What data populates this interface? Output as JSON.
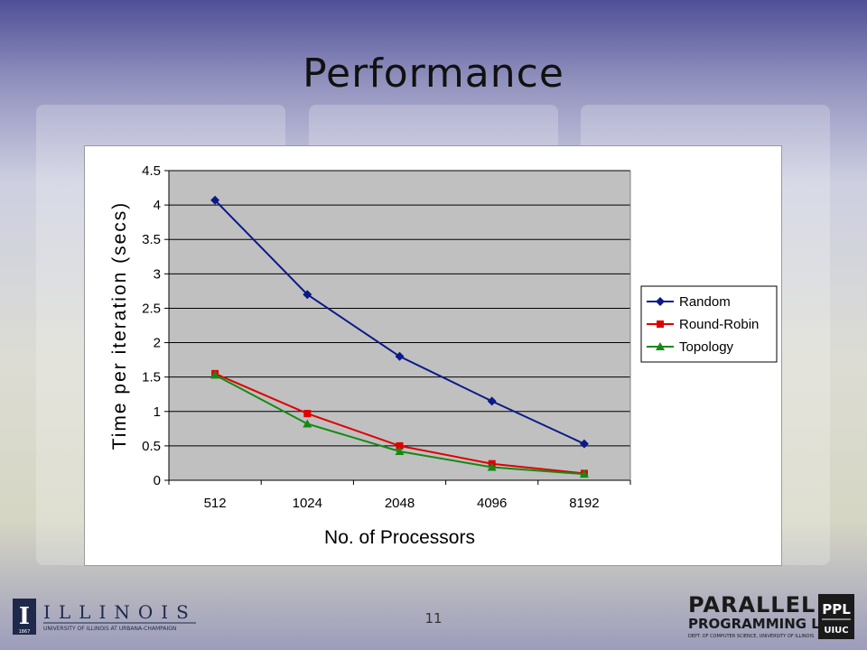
{
  "slide": {
    "title": "Performance",
    "page_number": "11"
  },
  "logos": {
    "illinois_name": "ILLINOIS",
    "illinois_sub": "UNIVERSITY OF ILLINOIS AT URBANA-CHAMPAIGN",
    "illinois_year": "1867",
    "illinois_letter": "I",
    "ppl_line1": "PARALLEL",
    "ppl_line2": "PROGRAMMING LAB",
    "ppl_line3": "DEPT. OF COMPUTER SCIENCE, UNIVERSITY OF ILLINOIS",
    "ppl_badge_top": "PPL",
    "ppl_badge_bottom": "UIUC"
  },
  "colors": {
    "plot_area": "#c0c0c0",
    "random": "#0a1a8a",
    "round_robin": "#e00000",
    "topology": "#138a13"
  },
  "chart_data": {
    "type": "line",
    "title": "",
    "xlabel": "No. of Processors",
    "ylabel": "Time per iteration (secs)",
    "categories": [
      "512",
      "1024",
      "2048",
      "4096",
      "8192"
    ],
    "ylim": [
      0,
      4.5
    ],
    "yticks": [
      "0",
      "0.5",
      "1",
      "1.5",
      "2",
      "2.5",
      "3",
      "3.5",
      "4",
      "4.5"
    ],
    "grid": true,
    "legend_position": "right",
    "series": [
      {
        "name": "Random",
        "marker": "diamond",
        "color": "#0a1a8a",
        "values": [
          4.07,
          2.7,
          1.8,
          1.15,
          0.53
        ]
      },
      {
        "name": "Round-Robin",
        "marker": "square",
        "color": "#e00000",
        "values": [
          1.55,
          0.97,
          0.5,
          0.24,
          0.1
        ]
      },
      {
        "name": "Topology",
        "marker": "triangle",
        "color": "#138a13",
        "values": [
          1.53,
          0.82,
          0.42,
          0.19,
          0.09
        ]
      }
    ]
  }
}
